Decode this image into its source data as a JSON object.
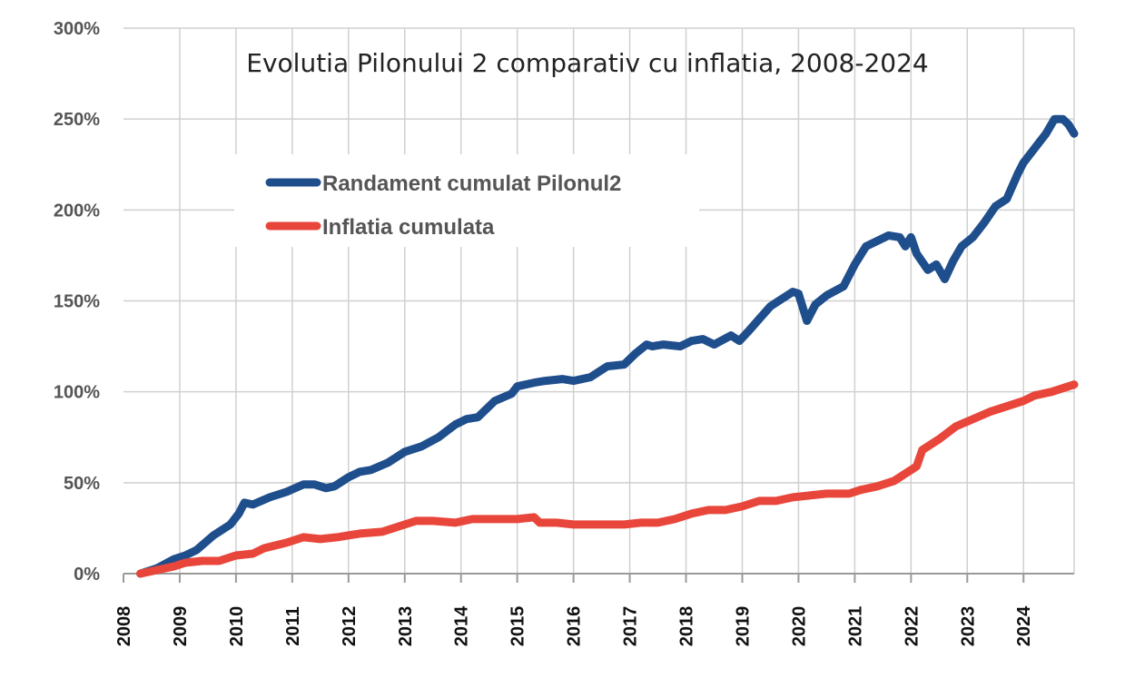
{
  "chart_data": {
    "type": "line",
    "title": "Evolutia Pilonului 2 comparativ cu inflatia, 2008-2024",
    "xlabel": "",
    "ylabel": "",
    "xlim": [
      2008,
      2024.9
    ],
    "ylim": [
      0,
      300
    ],
    "yticks": [
      "0%",
      "50%",
      "100%",
      "150%",
      "200%",
      "250%",
      "300%"
    ],
    "ytick_values": [
      0,
      50,
      100,
      150,
      200,
      250,
      300
    ],
    "xticks": [
      "2008",
      "2009",
      "2010",
      "2011",
      "2012",
      "2013",
      "2014",
      "2015",
      "2016",
      "2017",
      "2018",
      "2019",
      "2020",
      "2021",
      "2022",
      "2023",
      "2024"
    ],
    "grid": true,
    "legend_position": "upper-left",
    "series": [
      {
        "name": "Randament cumulat Pilonul2",
        "color": "#1f4e8c",
        "x": [
          2008.3,
          2008.6,
          2008.9,
          2009.1,
          2009.3,
          2009.6,
          2009.9,
          2010.05,
          2010.15,
          2010.3,
          2010.6,
          2010.9,
          2011.2,
          2011.4,
          2011.6,
          2011.75,
          2012.0,
          2012.2,
          2012.4,
          2012.7,
          2013.0,
          2013.3,
          2013.6,
          2013.9,
          2014.1,
          2014.3,
          2014.6,
          2014.9,
          2015.0,
          2015.3,
          2015.5,
          2015.8,
          2016.0,
          2016.3,
          2016.6,
          2016.9,
          2017.1,
          2017.3,
          2017.4,
          2017.6,
          2017.9,
          2018.1,
          2018.3,
          2018.5,
          2018.8,
          2018.95,
          2019.1,
          2019.3,
          2019.5,
          2019.7,
          2019.9,
          2020.0,
          2020.15,
          2020.3,
          2020.5,
          2020.8,
          2021.0,
          2021.1,
          2021.2,
          2021.4,
          2021.6,
          2021.8,
          2021.9,
          2022.0,
          2022.1,
          2022.3,
          2022.45,
          2022.6,
          2022.75,
          2022.9,
          2023.1,
          2023.3,
          2023.5,
          2023.7,
          2023.9,
          2024.0,
          2024.2,
          2024.4,
          2024.55,
          2024.7,
          2024.8,
          2024.9
        ],
        "values": [
          0,
          3,
          8,
          10,
          13,
          21,
          27,
          33,
          39,
          38,
          42,
          45,
          49,
          49,
          47,
          48,
          53,
          56,
          57,
          61,
          67,
          70,
          75,
          82,
          85,
          86,
          95,
          99,
          103,
          105,
          106,
          107,
          106,
          108,
          114,
          115,
          121,
          126,
          125,
          126,
          125,
          128,
          129,
          126,
          131,
          128,
          133,
          140,
          147,
          151,
          155,
          154,
          139,
          148,
          153,
          158,
          170,
          175,
          180,
          183,
          186,
          185,
          180,
          185,
          176,
          167,
          170,
          162,
          172,
          180,
          185,
          193,
          202,
          206,
          220,
          226,
          234,
          242,
          250,
          250,
          247,
          242
        ]
      },
      {
        "name": "Inflatia cumulata",
        "color": "#e8463a",
        "x": [
          2008.3,
          2008.6,
          2008.9,
          2009.1,
          2009.4,
          2009.7,
          2010.0,
          2010.3,
          2010.5,
          2010.9,
          2011.2,
          2011.5,
          2011.8,
          2012.2,
          2012.6,
          2012.9,
          2013.2,
          2013.5,
          2013.9,
          2014.2,
          2014.5,
          2014.8,
          2015.0,
          2015.3,
          2015.4,
          2015.7,
          2016.0,
          2016.3,
          2016.6,
          2016.9,
          2017.2,
          2017.5,
          2017.8,
          2018.1,
          2018.4,
          2018.7,
          2019.0,
          2019.3,
          2019.6,
          2019.9,
          2020.2,
          2020.5,
          2020.9,
          2021.1,
          2021.4,
          2021.7,
          2021.9,
          2022.1,
          2022.2,
          2022.5,
          2022.8,
          2023.1,
          2023.4,
          2023.7,
          2024.0,
          2024.2,
          2024.5,
          2024.9
        ],
        "values": [
          0,
          2,
          4,
          6,
          7,
          7,
          10,
          11,
          14,
          17,
          20,
          19,
          20,
          22,
          23,
          26,
          29,
          29,
          28,
          30,
          30,
          30,
          30,
          31,
          28,
          28,
          27,
          27,
          27,
          27,
          28,
          28,
          30,
          33,
          35,
          35,
          37,
          40,
          40,
          42,
          43,
          44,
          44,
          46,
          48,
          51,
          55,
          59,
          68,
          74,
          81,
          85,
          89,
          92,
          95,
          98,
          100,
          104
        ]
      }
    ]
  }
}
